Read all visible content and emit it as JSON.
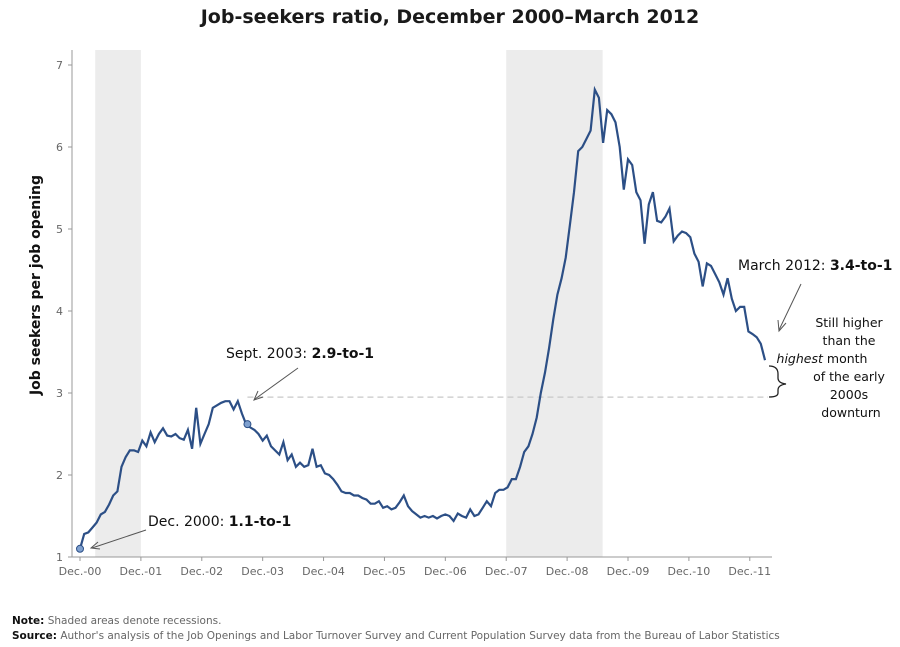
{
  "title": "Job-seekers ratio, December 2000–March 2012",
  "note": {
    "label": "Note:",
    "text": "Shaded areas denote recessions."
  },
  "source": {
    "label": "Source:",
    "text": "Author's analysis of the Job Openings and Labor Turnover Survey and Current Population Survey data from the Bureau of Labor Statistics"
  },
  "annotations": {
    "dec2000": {
      "prefix": "Dec. 2000: ",
      "value": "1.1-to-1"
    },
    "sept2003": {
      "prefix": "Sept. 2003: ",
      "value": "2.9-to-1"
    },
    "mar2012": {
      "prefix": "March 2012: ",
      "value": "3.4-to-1"
    },
    "still_higher": [
      "Still higher",
      "than the",
      "highest",
      "month",
      "of the early",
      "2000s",
      "downturn"
    ]
  },
  "colors": {
    "line": "#2c4f86",
    "recession": "#ececec",
    "axis": "#999999",
    "reference": "#c8c8c8",
    "marker": "#7ea0cf"
  },
  "chart_data": {
    "type": "line",
    "title": "Job-seekers ratio, December 2000–March 2012",
    "xlabel": "",
    "ylabel": "Job seekers per job opening",
    "ylim": [
      1,
      7
    ],
    "yticks": [
      "1",
      "2",
      "3",
      "4",
      "5",
      "6",
      "7"
    ],
    "xticks": [
      "Dec.-00",
      "Dec.-01",
      "Dec.-02",
      "Dec.-03",
      "Dec.-04",
      "Dec.-05",
      "Dec.-06",
      "Dec.-07",
      "Dec.-08",
      "Dec.-09",
      "Dec.-10",
      "Dec.-11"
    ],
    "x_start": "Dec. 2000",
    "x_end": "Mar. 2012",
    "grid": false,
    "recessions": [
      {
        "start": "Mar. 2001",
        "end": "Nov. 2001"
      },
      {
        "start": "Dec. 2007",
        "end": "Jun. 2009"
      }
    ],
    "reference_line": 2.95,
    "series": [
      {
        "values": [
          1.1,
          1.28,
          1.3,
          1.36,
          1.42,
          1.52,
          1.55,
          1.64,
          1.75,
          1.8,
          2.1,
          2.22,
          2.3,
          2.3,
          2.28,
          2.42,
          2.35,
          2.52,
          2.4,
          2.5,
          2.57,
          2.48,
          2.47,
          2.5,
          2.45,
          2.43,
          2.55,
          2.32,
          2.82,
          2.38,
          2.5,
          2.62,
          2.82,
          2.85,
          2.88,
          2.9,
          2.9,
          2.8,
          2.9,
          2.75,
          2.62,
          2.58,
          2.55,
          2.5,
          2.42,
          2.48,
          2.35,
          2.3,
          2.25,
          2.4,
          2.18,
          2.25,
          2.1,
          2.15,
          2.1,
          2.12,
          2.32,
          2.1,
          2.12,
          2.02,
          2.0,
          1.95,
          1.88,
          1.8,
          1.78,
          1.78,
          1.75,
          1.75,
          1.72,
          1.7,
          1.65,
          1.65,
          1.68,
          1.6,
          1.62,
          1.58,
          1.6,
          1.67,
          1.75,
          1.62,
          1.56,
          1.52,
          1.48,
          1.5,
          1.48,
          1.5,
          1.47,
          1.5,
          1.52,
          1.5,
          1.44,
          1.53,
          1.5,
          1.48,
          1.58,
          1.5,
          1.52,
          1.6,
          1.68,
          1.62,
          1.78,
          1.82,
          1.82,
          1.85,
          1.95,
          1.95,
          2.1,
          2.28,
          2.35,
          2.5,
          2.7,
          3.0,
          3.25,
          3.55,
          3.9,
          4.2,
          4.4,
          4.65,
          5.05,
          5.45,
          5.95,
          6.0,
          6.1,
          6.2,
          6.7,
          6.6,
          6.05,
          6.45,
          6.4,
          6.3,
          6.0,
          5.48,
          5.85,
          5.78,
          5.45,
          5.35,
          4.82,
          5.3,
          5.45,
          5.1,
          5.08,
          5.15,
          5.25,
          4.85,
          4.92,
          4.97,
          4.95,
          4.9,
          4.7,
          4.6,
          4.3,
          4.58,
          4.55,
          4.45,
          4.35,
          4.2,
          4.4,
          4.15,
          4.0,
          4.05,
          4.05,
          3.75,
          3.72,
          3.68,
          3.6,
          3.4
        ]
      }
    ],
    "highlight_points": [
      {
        "label": "Dec. 2000",
        "value": 1.1
      },
      {
        "label": "Sept. 2003",
        "value": 2.9
      },
      {
        "label": "March 2012",
        "value": 3.4
      }
    ]
  }
}
